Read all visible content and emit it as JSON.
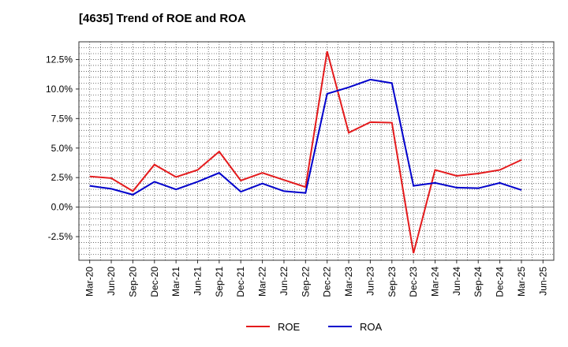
{
  "chart_data": {
    "type": "line",
    "title": "[4635]  Trend of ROE and ROA",
    "xlabel": "",
    "ylabel": "",
    "categories": [
      "Mar-20",
      "Jun-20",
      "Sep-20",
      "Dec-20",
      "Mar-21",
      "Jun-21",
      "Sep-21",
      "Dec-21",
      "Mar-22",
      "Jun-22",
      "Sep-22",
      "Dec-22",
      "Mar-23",
      "Jun-23",
      "Sep-23",
      "Dec-23",
      "Mar-24",
      "Jun-24",
      "Sep-24",
      "Dec-24",
      "Mar-25",
      "Jun-25"
    ],
    "series": [
      {
        "name": "ROE",
        "color": "#e41a1c",
        "values": [
          2.6,
          2.45,
          1.35,
          3.6,
          2.55,
          3.15,
          4.7,
          2.25,
          2.9,
          2.3,
          1.7,
          13.2,
          6.3,
          7.2,
          7.15,
          -3.9,
          3.15,
          2.65,
          2.85,
          3.15,
          4.0,
          null
        ]
      },
      {
        "name": "ROA",
        "color": "#0000cc",
        "values": [
          1.8,
          1.55,
          1.05,
          2.15,
          1.5,
          2.15,
          2.9,
          1.3,
          2.0,
          1.35,
          1.2,
          9.6,
          10.15,
          10.8,
          10.5,
          1.8,
          2.05,
          1.65,
          1.6,
          2.05,
          1.45,
          null
        ]
      }
    ],
    "y_ticks": [
      "12.5%",
      "10.0%",
      "7.5%",
      "5.0%",
      "2.5%",
      "0.0%",
      "-2.5%"
    ],
    "y_tick_values": [
      12.5,
      10.0,
      7.5,
      5.0,
      2.5,
      0.0,
      -2.5
    ],
    "ylim": [
      -4.5,
      14.0
    ],
    "grid": true,
    "legend_position": "bottom-center"
  },
  "colors": {
    "zero_line": "#888888",
    "grid": "#555555",
    "axis": "#333333"
  }
}
